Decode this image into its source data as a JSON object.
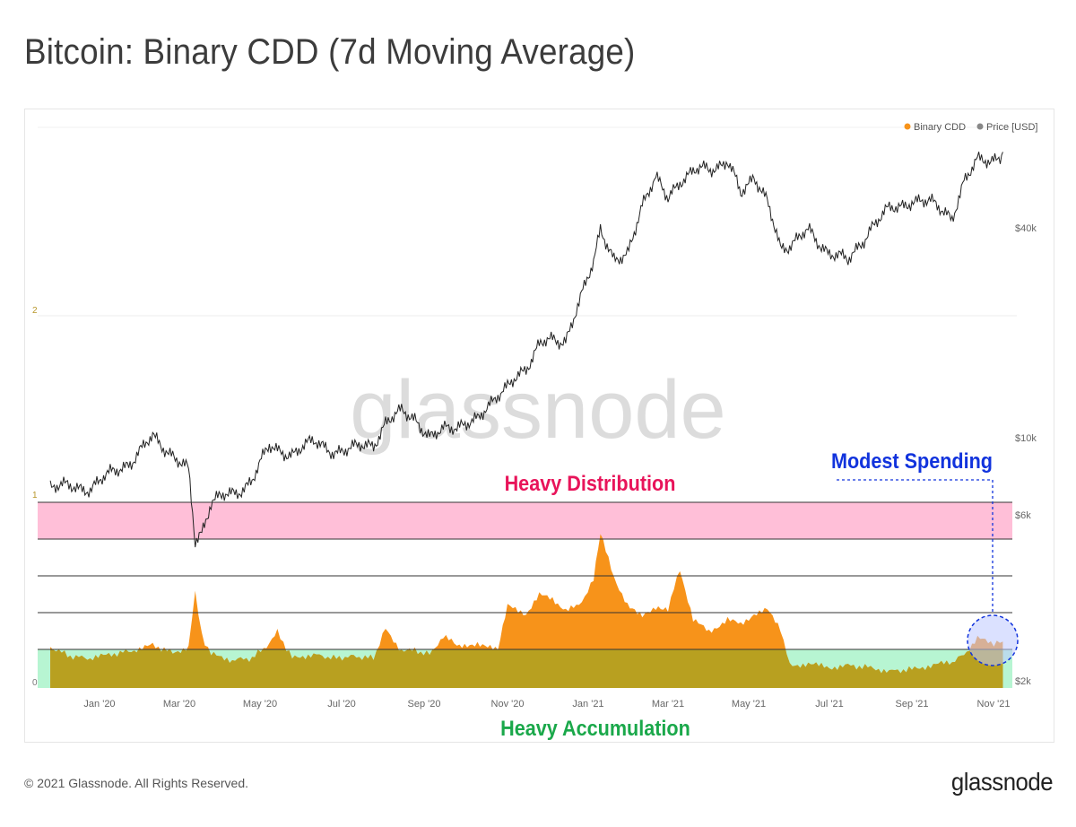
{
  "title": "Bitcoin: Binary CDD (7d Moving Average)",
  "footer": {
    "copyright": "© 2021 Glassnode. All Rights Reserved.",
    "brand": "glassnode"
  },
  "watermark": "glassnode",
  "colors": {
    "cdd": "#f7931a",
    "cdd_below": "#b8a020",
    "price": "#222222",
    "distribution_band": "#ffbfd8",
    "accumulation_band": "#b7f5d2",
    "distribution_text": "#e8145a",
    "accumulation_text": "#1aa84a",
    "modest_text": "#1133dd",
    "legend_cdd_dot": "#f7931a",
    "legend_price_dot": "#888888"
  },
  "annotations": {
    "distribution": "Heavy Distribution",
    "accumulation": "Heavy Accumulation",
    "modest": "Modest Spending"
  },
  "chart_data": {
    "type": "line",
    "x_ticks": [
      "Jan '20",
      "Mar '20",
      "May '20",
      "Jul '20",
      "Sep '20",
      "Nov '20",
      "Jan '21",
      "Mar '21",
      "May '21",
      "Jul '21",
      "Sep '21",
      "Nov '21"
    ],
    "y_left_ticks": [
      "0",
      "1",
      "2"
    ],
    "y_right_ticks": [
      "$2k",
      "$6k",
      "$10k",
      "$40k"
    ],
    "y_left_range": [
      0,
      2.0
    ],
    "y_right_log_scale": true,
    "legend": {
      "position": "top-right",
      "entries": [
        "Binary CDD",
        "Price [USD]"
      ]
    },
    "series": [
      {
        "name": "Binary CDD",
        "axis": "left",
        "x": [
          "2019-11-25",
          "2019-12-10",
          "2019-12-25",
          "2020-01-10",
          "2020-01-25",
          "2020-02-10",
          "2020-02-25",
          "2020-03-08",
          "2020-03-13",
          "2020-03-18",
          "2020-03-25",
          "2020-04-10",
          "2020-04-25",
          "2020-05-08",
          "2020-05-14",
          "2020-05-25",
          "2020-06-10",
          "2020-06-25",
          "2020-07-10",
          "2020-07-25",
          "2020-08-03",
          "2020-08-15",
          "2020-08-25",
          "2020-09-05",
          "2020-09-15",
          "2020-09-25",
          "2020-10-10",
          "2020-10-25",
          "2020-11-01",
          "2020-11-15",
          "2020-11-25",
          "2020-12-05",
          "2020-12-15",
          "2020-12-25",
          "2021-01-05",
          "2021-01-10",
          "2021-01-20",
          "2021-01-30",
          "2021-02-10",
          "2021-02-20",
          "2021-03-01",
          "2021-03-10",
          "2021-03-20",
          "2021-04-01",
          "2021-04-15",
          "2021-04-25",
          "2021-05-05",
          "2021-05-15",
          "2021-05-25",
          "2021-06-01",
          "2021-06-15",
          "2021-07-01",
          "2021-07-15",
          "2021-08-01",
          "2021-08-15",
          "2021-09-01",
          "2021-09-15",
          "2021-10-01",
          "2021-10-10",
          "2021-10-20",
          "2021-10-30",
          "2021-11-08"
        ],
        "values": [
          0.22,
          0.17,
          0.16,
          0.18,
          0.2,
          0.23,
          0.19,
          0.22,
          0.52,
          0.28,
          0.18,
          0.15,
          0.16,
          0.24,
          0.3,
          0.16,
          0.18,
          0.16,
          0.17,
          0.16,
          0.32,
          0.2,
          0.2,
          0.18,
          0.28,
          0.23,
          0.24,
          0.2,
          0.44,
          0.4,
          0.5,
          0.48,
          0.42,
          0.44,
          0.58,
          0.83,
          0.6,
          0.44,
          0.38,
          0.44,
          0.43,
          0.64,
          0.37,
          0.3,
          0.37,
          0.34,
          0.4,
          0.42,
          0.32,
          0.12,
          0.13,
          0.11,
          0.12,
          0.11,
          0.09,
          0.1,
          0.12,
          0.14,
          0.18,
          0.27,
          0.24,
          0.25
        ]
      },
      {
        "name": "Price [USD]",
        "axis": "right",
        "x": [
          "2019-11-25",
          "2019-12-10",
          "2019-12-25",
          "2020-01-10",
          "2020-01-25",
          "2020-02-10",
          "2020-02-25",
          "2020-03-08",
          "2020-03-13",
          "2020-03-18",
          "2020-03-25",
          "2020-04-10",
          "2020-04-25",
          "2020-05-08",
          "2020-05-25",
          "2020-06-10",
          "2020-06-25",
          "2020-07-10",
          "2020-07-25",
          "2020-08-03",
          "2020-08-15",
          "2020-08-25",
          "2020-09-05",
          "2020-09-15",
          "2020-09-25",
          "2020-10-10",
          "2020-10-25",
          "2020-11-01",
          "2020-11-15",
          "2020-11-25",
          "2020-12-05",
          "2020-12-15",
          "2020-12-25",
          "2021-01-05",
          "2021-01-10",
          "2021-01-20",
          "2021-01-30",
          "2021-02-10",
          "2021-02-20",
          "2021-03-01",
          "2021-03-10",
          "2021-03-20",
          "2021-04-01",
          "2021-04-15",
          "2021-04-25",
          "2021-05-05",
          "2021-05-15",
          "2021-05-25",
          "2021-06-01",
          "2021-06-15",
          "2021-07-01",
          "2021-07-15",
          "2021-08-01",
          "2021-08-15",
          "2021-09-01",
          "2021-09-15",
          "2021-10-01",
          "2021-10-10",
          "2021-10-20",
          "2021-10-30",
          "2021-11-08"
        ],
        "values": [
          7300,
          7200,
          7200,
          7900,
          8600,
          10000,
          9000,
          8000,
          5000,
          5400,
          6600,
          6900,
          7500,
          9500,
          9000,
          9700,
          9200,
          9300,
          9600,
          11100,
          11800,
          11400,
          10200,
          10800,
          10700,
          11300,
          13000,
          13800,
          16000,
          18500,
          19000,
          19200,
          24000,
          32000,
          40000,
          33000,
          34000,
          46000,
          55000,
          48000,
          55000,
          58000,
          59000,
          62000,
          50000,
          57000,
          47000,
          35000,
          36000,
          39000,
          34000,
          32000,
          40000,
          45000,
          48000,
          47000,
          43000,
          55000,
          62000,
          61000,
          66000
        ]
      }
    ]
  }
}
